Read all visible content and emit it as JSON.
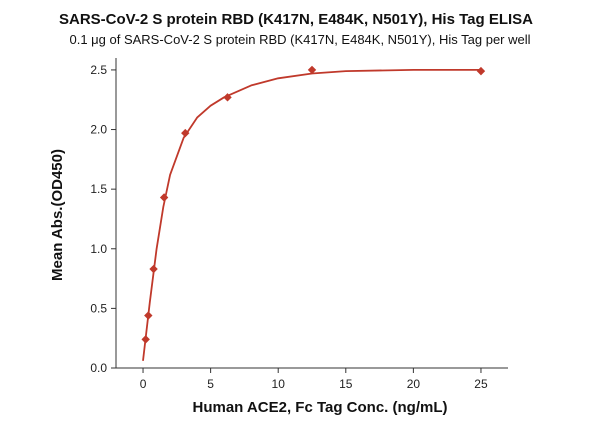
{
  "chart_data": {
    "type": "scatter",
    "title": "SARS-CoV-2 S protein RBD (K417N, E484K, N501Y), His Tag ELISA",
    "subtitle": "0.1 μg of SARS-CoV-2 S protein RBD (K417N, E484K, N501Y), His Tag per well",
    "xlabel": "Human ACE2, Fc Tag Conc. (ng/mL)",
    "ylabel": "Mean Abs.(OD450)",
    "xlim": [
      -2,
      27
    ],
    "ylim": [
      0,
      2.6
    ],
    "xticks": [
      0,
      5,
      10,
      15,
      20,
      25
    ],
    "yticks": [
      0.0,
      0.5,
      1.0,
      1.5,
      2.0,
      2.5
    ],
    "xtick_labels": [
      "0",
      "5",
      "10",
      "15",
      "20",
      "25"
    ],
    "ytick_labels": [
      "0.0",
      "0.5",
      "1.0",
      "1.5",
      "2.0",
      "2.5"
    ],
    "grid": false,
    "series": [
      {
        "points": [
          {
            "x": 0.195,
            "y": 0.24
          },
          {
            "x": 0.39,
            "y": 0.44
          },
          {
            "x": 0.78,
            "y": 0.83
          },
          {
            "x": 1.56,
            "y": 1.43
          },
          {
            "x": 3.125,
            "y": 1.97
          },
          {
            "x": 6.25,
            "y": 2.27
          },
          {
            "x": 12.5,
            "y": 2.5
          },
          {
            "x": 25,
            "y": 2.49
          }
        ],
        "fit_curve": [
          {
            "x": 0,
            "y": 0.06
          },
          {
            "x": 0.5,
            "y": 0.55
          },
          {
            "x": 1,
            "y": 1.0
          },
          {
            "x": 1.5,
            "y": 1.35
          },
          {
            "x": 2,
            "y": 1.62
          },
          {
            "x": 3,
            "y": 1.93
          },
          {
            "x": 4,
            "y": 2.1
          },
          {
            "x": 5,
            "y": 2.2
          },
          {
            "x": 6,
            "y": 2.27
          },
          {
            "x": 8,
            "y": 2.37
          },
          {
            "x": 10,
            "y": 2.43
          },
          {
            "x": 12.5,
            "y": 2.47
          },
          {
            "x": 15,
            "y": 2.49
          },
          {
            "x": 20,
            "y": 2.5
          },
          {
            "x": 25,
            "y": 2.5
          }
        ],
        "color": "#c0392b"
      }
    ]
  }
}
